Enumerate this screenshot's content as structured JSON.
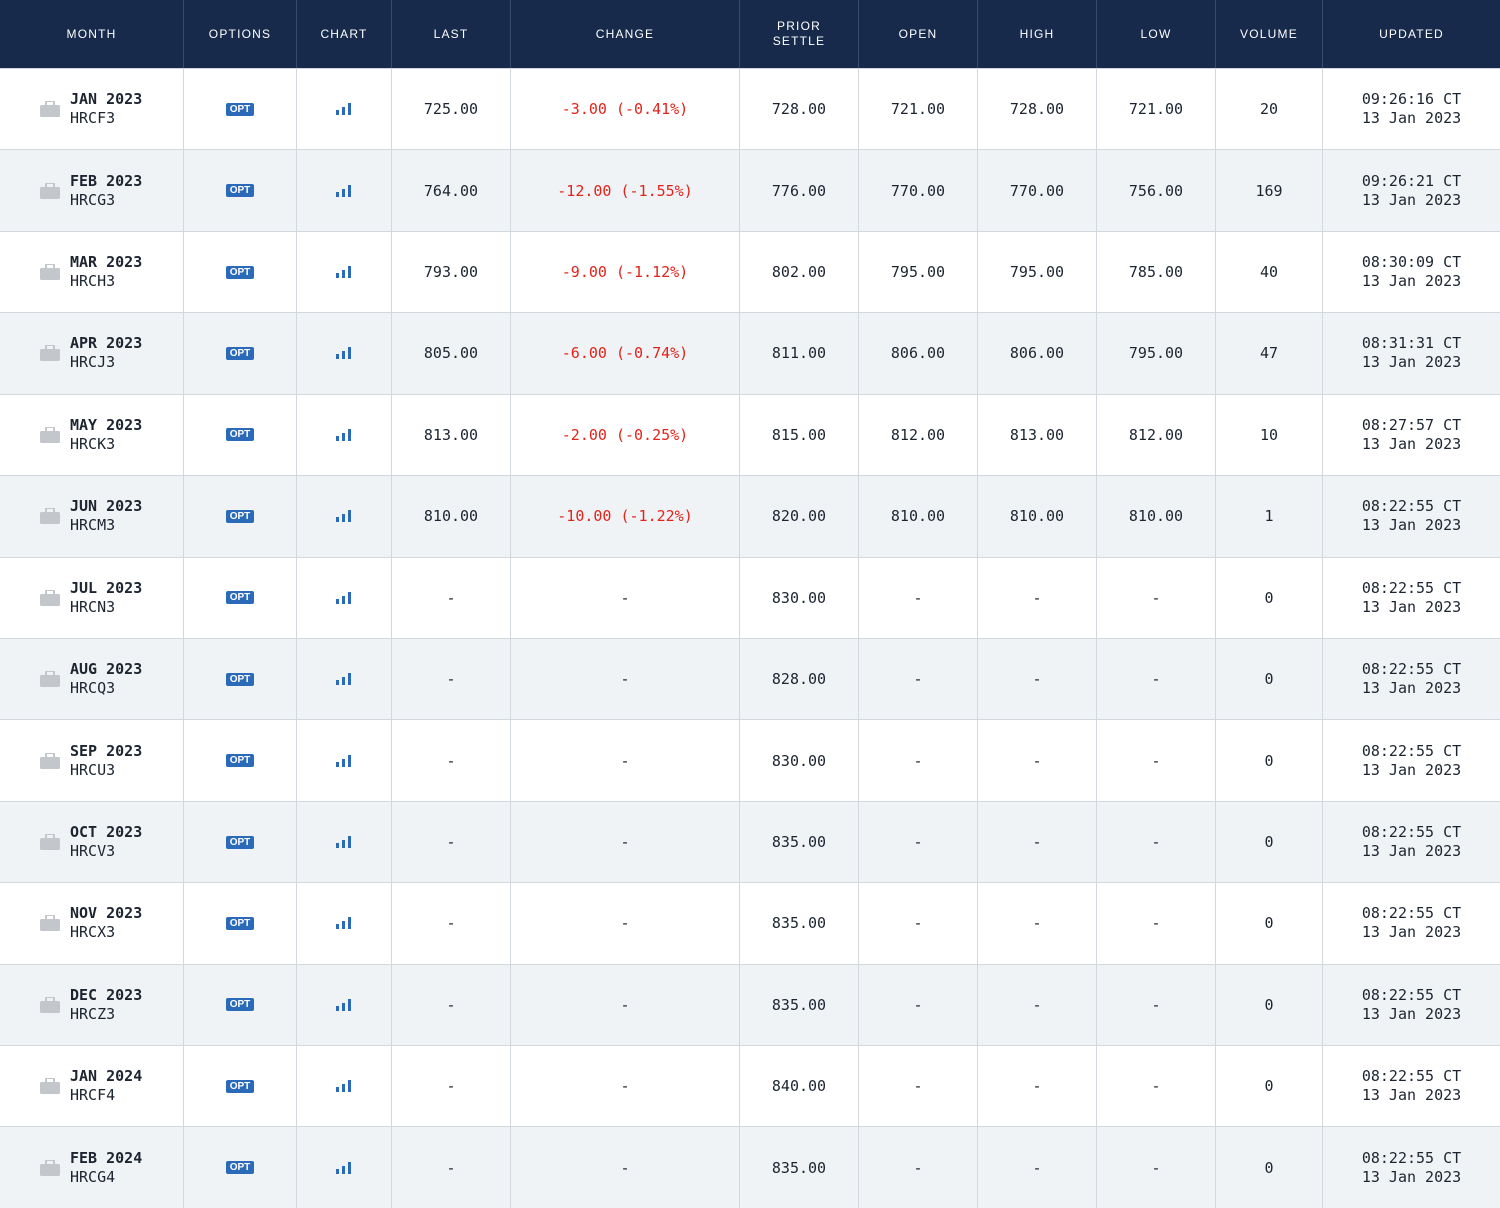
{
  "table": {
    "headers": [
      "MONTH",
      "OPTIONS",
      "CHART",
      "LAST",
      "CHANGE",
      "PRIOR SETTLE",
      "OPEN",
      "HIGH",
      "LOW",
      "VOLUME",
      "UPDATED"
    ],
    "rows": [
      {
        "month": "JAN 2023",
        "code": "HRCF3",
        "options": "OPT",
        "last": "725.00",
        "change": "-3.00 (-0.41%)",
        "prior_settle": "728.00",
        "open": "721.00",
        "high": "728.00",
        "low": "721.00",
        "volume": "20",
        "time": "09:26:16 CT",
        "date": "13 Jan 2023"
      },
      {
        "month": "FEB 2023",
        "code": "HRCG3",
        "options": "OPT",
        "last": "764.00",
        "change": "-12.00 (-1.55%)",
        "prior_settle": "776.00",
        "open": "770.00",
        "high": "770.00",
        "low": "756.00",
        "volume": "169",
        "time": "09:26:21 CT",
        "date": "13 Jan 2023"
      },
      {
        "month": "MAR 2023",
        "code": "HRCH3",
        "options": "OPT",
        "last": "793.00",
        "change": "-9.00 (-1.12%)",
        "prior_settle": "802.00",
        "open": "795.00",
        "high": "795.00",
        "low": "785.00",
        "volume": "40",
        "time": "08:30:09 CT",
        "date": "13 Jan 2023"
      },
      {
        "month": "APR 2023",
        "code": "HRCJ3",
        "options": "OPT",
        "last": "805.00",
        "change": "-6.00 (-0.74%)",
        "prior_settle": "811.00",
        "open": "806.00",
        "high": "806.00",
        "low": "795.00",
        "volume": "47",
        "time": "08:31:31 CT",
        "date": "13 Jan 2023"
      },
      {
        "month": "MAY 2023",
        "code": "HRCK3",
        "options": "OPT",
        "last": "813.00",
        "change": "-2.00 (-0.25%)",
        "prior_settle": "815.00",
        "open": "812.00",
        "high": "813.00",
        "low": "812.00",
        "volume": "10",
        "time": "08:27:57 CT",
        "date": "13 Jan 2023"
      },
      {
        "month": "JUN 2023",
        "code": "HRCM3",
        "options": "OPT",
        "last": "810.00",
        "change": "-10.00 (-1.22%)",
        "prior_settle": "820.00",
        "open": "810.00",
        "high": "810.00",
        "low": "810.00",
        "volume": "1",
        "time": "08:22:55 CT",
        "date": "13 Jan 2023"
      },
      {
        "month": "JUL 2023",
        "code": "HRCN3",
        "options": "OPT",
        "last": "-",
        "change": "-",
        "prior_settle": "830.00",
        "open": "-",
        "high": "-",
        "low": "-",
        "volume": "0",
        "time": "08:22:55 CT",
        "date": "13 Jan 2023"
      },
      {
        "month": "AUG 2023",
        "code": "HRCQ3",
        "options": "OPT",
        "last": "-",
        "change": "-",
        "prior_settle": "828.00",
        "open": "-",
        "high": "-",
        "low": "-",
        "volume": "0",
        "time": "08:22:55 CT",
        "date": "13 Jan 2023"
      },
      {
        "month": "SEP 2023",
        "code": "HRCU3",
        "options": "OPT",
        "last": "-",
        "change": "-",
        "prior_settle": "830.00",
        "open": "-",
        "high": "-",
        "low": "-",
        "volume": "0",
        "time": "08:22:55 CT",
        "date": "13 Jan 2023"
      },
      {
        "month": "OCT 2023",
        "code": "HRCV3",
        "options": "OPT",
        "last": "-",
        "change": "-",
        "prior_settle": "835.00",
        "open": "-",
        "high": "-",
        "low": "-",
        "volume": "0",
        "time": "08:22:55 CT",
        "date": "13 Jan 2023"
      },
      {
        "month": "NOV 2023",
        "code": "HRCX3",
        "options": "OPT",
        "last": "-",
        "change": "-",
        "prior_settle": "835.00",
        "open": "-",
        "high": "-",
        "low": "-",
        "volume": "0",
        "time": "08:22:55 CT",
        "date": "13 Jan 2023"
      },
      {
        "month": "DEC 2023",
        "code": "HRCZ3",
        "options": "OPT",
        "last": "-",
        "change": "-",
        "prior_settle": "835.00",
        "open": "-",
        "high": "-",
        "low": "-",
        "volume": "0",
        "time": "08:22:55 CT",
        "date": "13 Jan 2023"
      },
      {
        "month": "JAN 2024",
        "code": "HRCF4",
        "options": "OPT",
        "last": "-",
        "change": "-",
        "prior_settle": "840.00",
        "open": "-",
        "high": "-",
        "low": "-",
        "volume": "0",
        "time": "08:22:55 CT",
        "date": "13 Jan 2023"
      },
      {
        "month": "FEB 2024",
        "code": "HRCG4",
        "options": "OPT",
        "last": "-",
        "change": "-",
        "prior_settle": "835.00",
        "open": "-",
        "high": "-",
        "low": "-",
        "volume": "0",
        "time": "08:22:55 CT",
        "date": "13 Jan 2023"
      }
    ]
  }
}
